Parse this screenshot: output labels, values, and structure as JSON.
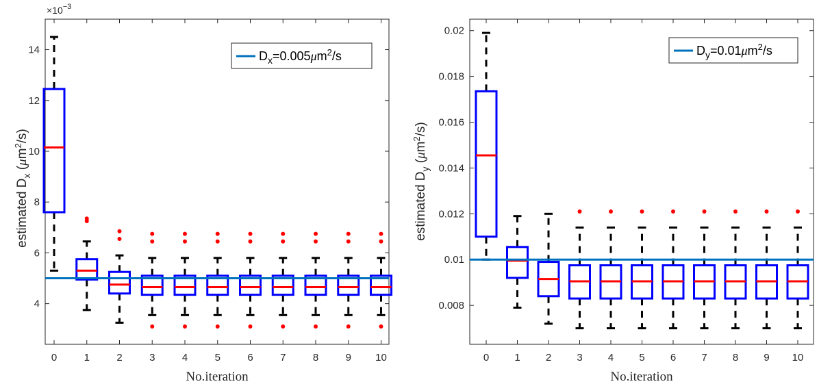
{
  "colors": {
    "box": "#0000ff",
    "median": "#ff0000",
    "whisker": "#000000",
    "outlier": "#ff0000",
    "reference": "#0072bd",
    "axis": "#262626"
  },
  "chart_data": [
    {
      "type": "box",
      "xlabel": "No.iteration",
      "ylabel_main": "estimated D",
      "ylabel_sub": "x",
      "ylabel_mu": "μ",
      "ylabel_mid": "m",
      "ylabel_sup": "2",
      "ylabel_end": "/s)",
      "ylabel_open": " (",
      "y_exponent_base": "×10",
      "y_exponent_power": "−3",
      "ylim": [
        2.4,
        15.2
      ],
      "yticks": [
        4,
        6,
        8,
        10,
        12,
        14
      ],
      "ytick_labels": [
        "4",
        "6",
        "8",
        "10",
        "12",
        "14"
      ],
      "categories": [
        "0",
        "1",
        "2",
        "3",
        "4",
        "5",
        "6",
        "7",
        "8",
        "9",
        "10"
      ],
      "reference_value": 5.0,
      "legend": {
        "prefix": "D",
        "sub": "x",
        "mid": "=0.005",
        "mu": "μ",
        "unit": "m",
        "sup": "2",
        "end": "/s"
      },
      "boxes": [
        {
          "x": 0,
          "whislo": 5.3,
          "q1": 7.6,
          "med": 10.15,
          "q3": 12.45,
          "whishi": 14.5,
          "fliers": []
        },
        {
          "x": 1,
          "whislo": 3.75,
          "q1": 4.95,
          "med": 5.3,
          "q3": 5.75,
          "whishi": 6.45,
          "fliers": [
            7.25,
            7.35
          ]
        },
        {
          "x": 2,
          "whislo": 3.25,
          "q1": 4.4,
          "med": 4.75,
          "q3": 5.25,
          "whishi": 5.9,
          "fliers": [
            6.55,
            6.85
          ]
        },
        {
          "x": 3,
          "whislo": 3.55,
          "q1": 4.35,
          "med": 4.65,
          "q3": 5.1,
          "whishi": 5.8,
          "fliers": [
            6.45,
            6.75,
            3.1
          ]
        },
        {
          "x": 4,
          "whislo": 3.55,
          "q1": 4.35,
          "med": 4.65,
          "q3": 5.1,
          "whishi": 5.8,
          "fliers": [
            6.45,
            6.75,
            3.1
          ]
        },
        {
          "x": 5,
          "whislo": 3.55,
          "q1": 4.35,
          "med": 4.65,
          "q3": 5.1,
          "whishi": 5.8,
          "fliers": [
            6.45,
            6.75,
            3.1
          ]
        },
        {
          "x": 6,
          "whislo": 3.55,
          "q1": 4.35,
          "med": 4.65,
          "q3": 5.1,
          "whishi": 5.8,
          "fliers": [
            6.45,
            6.75,
            3.1
          ]
        },
        {
          "x": 7,
          "whislo": 3.55,
          "q1": 4.35,
          "med": 4.65,
          "q3": 5.1,
          "whishi": 5.8,
          "fliers": [
            6.45,
            6.75,
            3.1
          ]
        },
        {
          "x": 8,
          "whislo": 3.55,
          "q1": 4.35,
          "med": 4.65,
          "q3": 5.1,
          "whishi": 5.8,
          "fliers": [
            6.45,
            6.75,
            3.1
          ]
        },
        {
          "x": 9,
          "whislo": 3.55,
          "q1": 4.35,
          "med": 4.65,
          "q3": 5.1,
          "whishi": 5.8,
          "fliers": [
            6.45,
            6.75,
            3.1
          ]
        },
        {
          "x": 10,
          "whislo": 3.55,
          "q1": 4.35,
          "med": 4.65,
          "q3": 5.1,
          "whishi": 5.8,
          "fliers": [
            6.45,
            6.75,
            3.1
          ]
        }
      ]
    },
    {
      "type": "box",
      "xlabel": "No.iteration",
      "ylabel_main": "estimated D",
      "ylabel_sub": "y",
      "ylabel_mu": "μ",
      "ylabel_mid": "m",
      "ylabel_sup": "2",
      "ylabel_end": "/s)",
      "ylabel_open": " (",
      "ylim": [
        0.0063,
        0.0205
      ],
      "yticks": [
        0.008,
        0.01,
        0.012,
        0.014,
        0.016,
        0.018,
        0.02
      ],
      "ytick_labels": [
        "0.008",
        "0.01",
        "0.012",
        "0.014",
        "0.016",
        "0.018",
        "0.02"
      ],
      "categories": [
        "0",
        "1",
        "2",
        "3",
        "4",
        "5",
        "6",
        "7",
        "8",
        "9",
        "10"
      ],
      "reference_value": 0.01,
      "legend": {
        "prefix": "D",
        "sub": "y",
        "mid": "=0.01",
        "mu": "μ",
        "unit": "m",
        "sup": "2",
        "end": "/s"
      },
      "boxes": [
        {
          "x": 0,
          "whislo": 0.01,
          "q1": 0.011,
          "med": 0.01455,
          "q3": 0.01735,
          "whishi": 0.0199,
          "fliers": []
        },
        {
          "x": 1,
          "whislo": 0.0079,
          "q1": 0.0092,
          "med": 0.00995,
          "q3": 0.01055,
          "whishi": 0.0119,
          "fliers": []
        },
        {
          "x": 2,
          "whislo": 0.0072,
          "q1": 0.0084,
          "med": 0.00915,
          "q3": 0.0099,
          "whishi": 0.012,
          "fliers": []
        },
        {
          "x": 3,
          "whislo": 0.007,
          "q1": 0.0083,
          "med": 0.00905,
          "q3": 0.00975,
          "whishi": 0.0114,
          "fliers": [
            0.0121
          ]
        },
        {
          "x": 4,
          "whislo": 0.007,
          "q1": 0.0083,
          "med": 0.00905,
          "q3": 0.00975,
          "whishi": 0.0114,
          "fliers": [
            0.0121
          ]
        },
        {
          "x": 5,
          "whislo": 0.007,
          "q1": 0.0083,
          "med": 0.00905,
          "q3": 0.00975,
          "whishi": 0.0114,
          "fliers": [
            0.0121
          ]
        },
        {
          "x": 6,
          "whislo": 0.007,
          "q1": 0.0083,
          "med": 0.00905,
          "q3": 0.00975,
          "whishi": 0.0114,
          "fliers": [
            0.0121
          ]
        },
        {
          "x": 7,
          "whislo": 0.007,
          "q1": 0.0083,
          "med": 0.00905,
          "q3": 0.00975,
          "whishi": 0.0114,
          "fliers": [
            0.0121
          ]
        },
        {
          "x": 8,
          "whislo": 0.007,
          "q1": 0.0083,
          "med": 0.00905,
          "q3": 0.00975,
          "whishi": 0.0114,
          "fliers": [
            0.0121
          ]
        },
        {
          "x": 9,
          "whislo": 0.007,
          "q1": 0.0083,
          "med": 0.00905,
          "q3": 0.00975,
          "whishi": 0.0114,
          "fliers": [
            0.0121
          ]
        },
        {
          "x": 10,
          "whislo": 0.007,
          "q1": 0.0083,
          "med": 0.00905,
          "q3": 0.00975,
          "whishi": 0.0114,
          "fliers": [
            0.0121
          ]
        }
      ]
    }
  ]
}
